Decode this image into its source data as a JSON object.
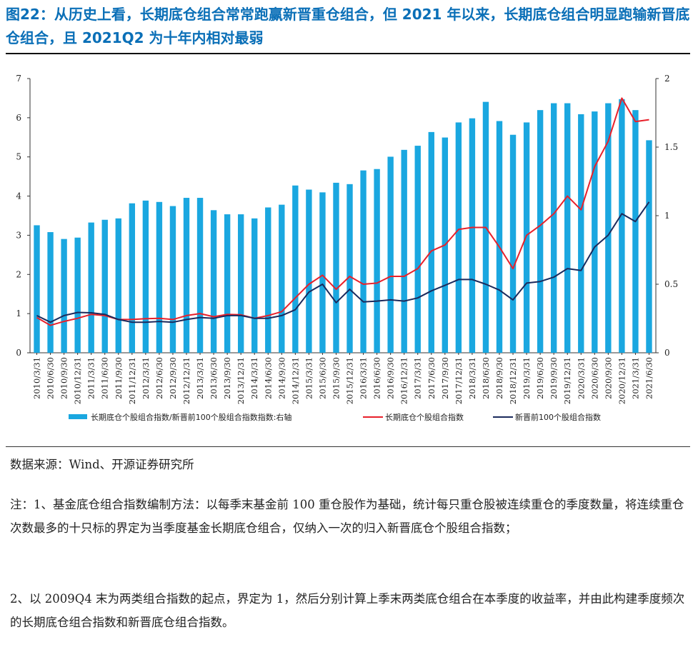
{
  "title": "图22：从历史上看，长期底仓组合常常跑赢新晋重仓组合，但 2021 年以来，长期底仓组合明显跑输新晋底仓组合，且 2021Q2 为十年内相对最弱",
  "source": "数据来源：Wind、开源证券研究所",
  "note1": "注：1、基金底仓组合指数编制方法：以每季末基金前 100 重仓股作为基础，统计每只重仓股被连续重仓的季度数量，将连续重仓次数最多的十只标的界定为当季度基金长期底仓组合，仅纳入一次的归入新晋底仓个股组合指数；",
  "note2": "2、以 2009Q4 末为两类组合指数的起点，界定为 1，然后分别计算上季末两类底仓组合在本季度的收益率，并由此构建季度频次的长期底仓组合指数和新晋底仓组合指数。",
  "chart_data": {
    "type": "bar+line",
    "colors": {
      "bar": "#1aa7e0",
      "long": "#e8202a",
      "new": "#1b2a5c"
    },
    "categories": [
      "2010/3/31",
      "2010/6/30",
      "2010/9/30",
      "2010/12/31",
      "2011/3/31",
      "2011/6/30",
      "2011/9/30",
      "2011/12/31",
      "2012/3/31",
      "2012/6/30",
      "2012/9/30",
      "2012/12/31",
      "2013/3/31",
      "2013/6/30",
      "2013/9/30",
      "2013/12/31",
      "2014/3/31",
      "2014/6/30",
      "2014/9/30",
      "2014/12/31",
      "2015/3/31",
      "2015/6/30",
      "2015/9/30",
      "2015/12/31",
      "2016/3/31",
      "2016/6/30",
      "2016/9/30",
      "2016/12/31",
      "2017/3/31",
      "2017/6/30",
      "2017/9/30",
      "2017/12/31",
      "2018/3/31",
      "2018/6/30",
      "2018/9/30",
      "2018/12/31",
      "2019/3/31",
      "2019/6/30",
      "2019/9/30",
      "2019/12/31",
      "2020/3/31",
      "2020/6/30",
      "2020/9/30",
      "2020/12/31",
      "2021/3/31",
      "2021/6/30"
    ],
    "left_axis": {
      "min": 0,
      "max": 7,
      "ticks": [
        "0",
        "1",
        "2",
        "3",
        "4",
        "5",
        "6",
        "7"
      ]
    },
    "right_axis": {
      "min": 0,
      "max": 2,
      "ticks": [
        "0",
        "0.5",
        "1",
        "1.5",
        "2"
      ]
    },
    "series": [
      {
        "name": "长期底仓个股组合指数/新晋前100个股组合指数指数:右轴",
        "type": "bar",
        "axis": "right",
        "values": [
          0.93,
          0.88,
          0.83,
          0.84,
          0.95,
          0.97,
          0.98,
          1.09,
          1.11,
          1.1,
          1.07,
          1.13,
          1.13,
          1.04,
          1.01,
          1.01,
          0.98,
          1.06,
          1.08,
          1.22,
          1.19,
          1.17,
          1.24,
          1.23,
          1.33,
          1.34,
          1.43,
          1.48,
          1.51,
          1.61,
          1.57,
          1.68,
          1.71,
          1.83,
          1.69,
          1.59,
          1.68,
          1.77,
          1.82,
          1.82,
          1.74,
          1.76,
          1.82,
          1.85,
          1.77,
          1.55
        ]
      },
      {
        "name": "长期底仓个股组合指数",
        "type": "line",
        "axis": "left",
        "values": [
          0.9,
          0.7,
          0.8,
          0.88,
          0.98,
          0.95,
          0.85,
          0.85,
          0.87,
          0.88,
          0.85,
          0.95,
          1.0,
          0.92,
          0.98,
          0.97,
          0.88,
          0.95,
          1.05,
          1.4,
          1.75,
          1.98,
          1.62,
          1.95,
          1.75,
          1.78,
          1.95,
          1.95,
          2.15,
          2.6,
          2.75,
          3.15,
          3.2,
          3.2,
          2.7,
          2.15,
          3.0,
          3.25,
          3.55,
          4.0,
          3.65,
          4.75,
          5.4,
          6.5,
          5.9,
          5.95
        ]
      },
      {
        "name": "新晋前100个股组合指数",
        "type": "line",
        "axis": "left",
        "values": [
          0.95,
          0.78,
          0.95,
          1.03,
          1.02,
          0.98,
          0.85,
          0.78,
          0.78,
          0.8,
          0.78,
          0.85,
          0.9,
          0.88,
          0.95,
          0.95,
          0.88,
          0.88,
          0.95,
          1.1,
          1.55,
          1.75,
          1.28,
          1.62,
          1.3,
          1.32,
          1.35,
          1.32,
          1.4,
          1.58,
          1.72,
          1.87,
          1.87,
          1.75,
          1.6,
          1.35,
          1.78,
          1.82,
          1.93,
          2.15,
          2.1,
          2.7,
          3.0,
          3.55,
          3.35,
          3.85
        ]
      }
    ]
  }
}
